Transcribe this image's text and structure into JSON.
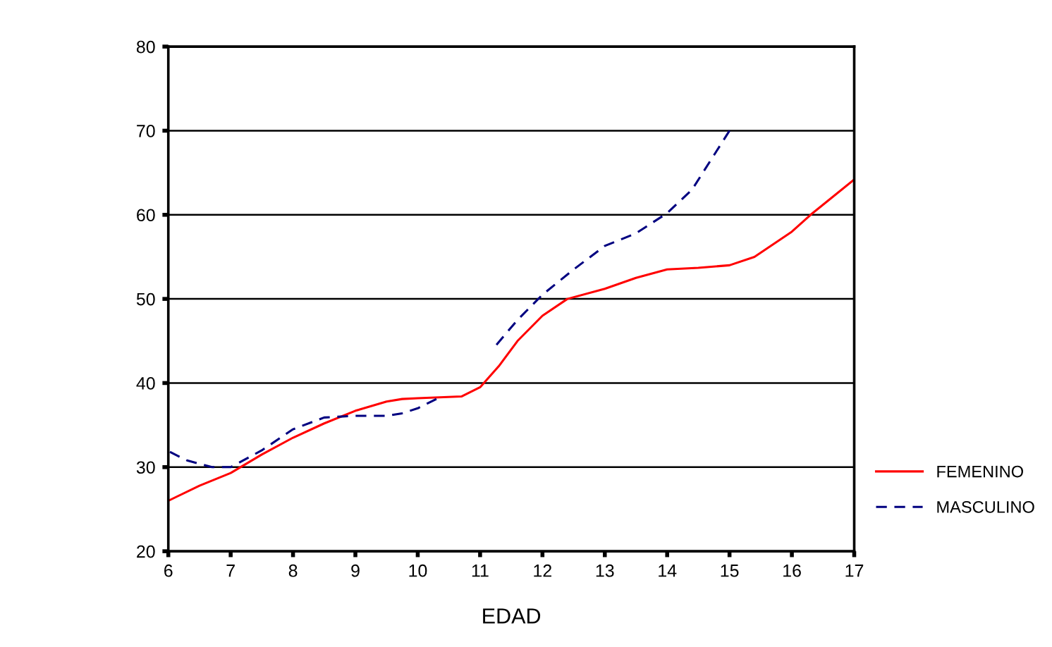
{
  "chart_data": {
    "type": "line",
    "xlabel": "EDAD",
    "xlim": [
      6,
      17
    ],
    "xticks": [
      6,
      7,
      8,
      9,
      10,
      11,
      12,
      13,
      14,
      15,
      16,
      17
    ],
    "ylim": [
      20,
      80
    ],
    "yticks": [
      20,
      30,
      40,
      50,
      60,
      70,
      80
    ],
    "grid": "y",
    "legend": "right",
    "marker": "none",
    "series": [
      {
        "name": "FEMENINO",
        "color": "#ff0000",
        "line_style": "solid",
        "x": [
          6,
          6.5,
          7,
          7.5,
          8,
          8.5,
          9,
          9.5,
          9.75,
          10,
          10.7,
          11,
          11.3,
          11.6,
          12,
          12.4,
          13,
          13.5,
          14,
          14.5,
          15,
          15.4,
          16,
          16.3,
          17
        ],
        "values": [
          26,
          27.8,
          29.3,
          31.5,
          33.5,
          35.2,
          36.7,
          37.8,
          38.1,
          38.2,
          38.4,
          39.5,
          42,
          45,
          48,
          50,
          51.2,
          52.5,
          53.5,
          53.7,
          54,
          55,
          58,
          60,
          64.2
        ]
      },
      {
        "name": "MASCULINO",
        "color": "#000080",
        "line_style": "dashed",
        "x": [
          6,
          6.3,
          6.7,
          7,
          7.5,
          8,
          8.5,
          9,
          9.5,
          9.75,
          10,
          10.3,
          10.7,
          11.2,
          11.6,
          12,
          12.5,
          13,
          13.5,
          14,
          14.4,
          14.7,
          15
        ],
        "values": [
          31.9,
          30.8,
          30,
          30,
          32,
          34.5,
          35.9,
          36.1,
          36.1,
          36.4,
          37,
          38.1,
          null,
          44,
          47.5,
          50.5,
          53.5,
          56.3,
          57.8,
          60.2,
          63,
          66.5,
          70
        ]
      }
    ]
  }
}
